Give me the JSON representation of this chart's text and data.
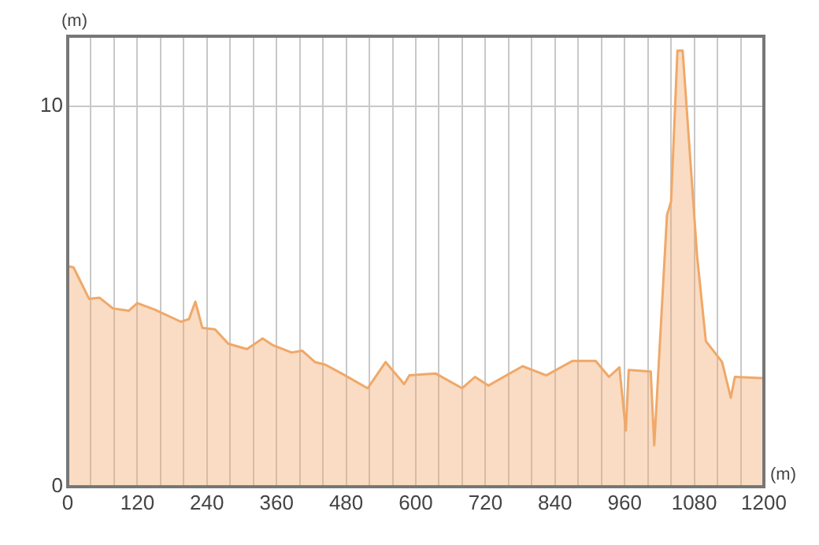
{
  "chart_data": {
    "type": "area",
    "xlabel": "(m)",
    "ylabel": "(m)",
    "x": [
      0,
      10,
      37,
      55,
      78,
      105,
      120,
      150,
      195,
      209,
      220,
      232,
      254,
      277,
      309,
      336,
      354,
      386,
      404,
      426,
      444,
      472,
      517,
      548,
      580,
      589,
      634,
      680,
      702,
      725,
      784,
      825,
      870,
      910,
      933,
      951,
      962,
      967,
      1005,
      1011,
      1033,
      1040,
      1051,
      1060,
      1085,
      1100,
      1128,
      1143,
      1150,
      1194,
      1200
    ],
    "series": [
      {
        "color": "#f0a868",
        "values": [
          5.8,
          5.77,
          4.94,
          4.97,
          4.69,
          4.63,
          4.83,
          4.66,
          4.34,
          4.41,
          4.87,
          4.18,
          4.14,
          3.76,
          3.62,
          3.9,
          3.72,
          3.53,
          3.58,
          3.28,
          3.21,
          2.98,
          2.59,
          3.28,
          2.7,
          2.93,
          2.98,
          2.59,
          2.89,
          2.66,
          3.17,
          2.93,
          3.31,
          3.31,
          2.89,
          3.14,
          1.48,
          3.07,
          3.03,
          1.09,
          7.15,
          7.5,
          11.47,
          11.47,
          6.05,
          3.83,
          3.28,
          2.34,
          2.89,
          2.86,
          2.86
        ]
      }
    ],
    "xlim": [
      0,
      1200
    ],
    "ylim": [
      0,
      11.85
    ],
    "xticks": [
      0,
      {
        "value": 40,
        "label": null
      },
      {
        "value": 80,
        "label": null
      },
      120,
      {
        "value": 160,
        "label": null
      },
      {
        "value": 200,
        "label": null
      },
      240,
      {
        "value": 280,
        "label": null
      },
      {
        "value": 320,
        "label": null
      },
      360,
      {
        "value": 400,
        "label": null
      },
      {
        "value": 440,
        "label": null
      },
      480,
      {
        "value": 520,
        "label": null
      },
      {
        "value": 560,
        "label": null
      },
      600,
      {
        "value": 640,
        "label": null
      },
      {
        "value": 680,
        "label": null
      },
      720,
      {
        "value": 760,
        "label": null
      },
      {
        "value": 800,
        "label": null
      },
      840,
      {
        "value": 880,
        "label": null
      },
      {
        "value": 920,
        "label": null
      },
      960,
      {
        "value": 1000,
        "label": null
      },
      {
        "value": 1040,
        "label": null
      },
      1080,
      {
        "value": 1120,
        "label": null
      },
      {
        "value": 1160,
        "label": null
      },
      1200
    ],
    "yticks": [
      0,
      10
    ],
    "grid": true,
    "legend": false,
    "marker": "none",
    "line_style": "solid"
  }
}
